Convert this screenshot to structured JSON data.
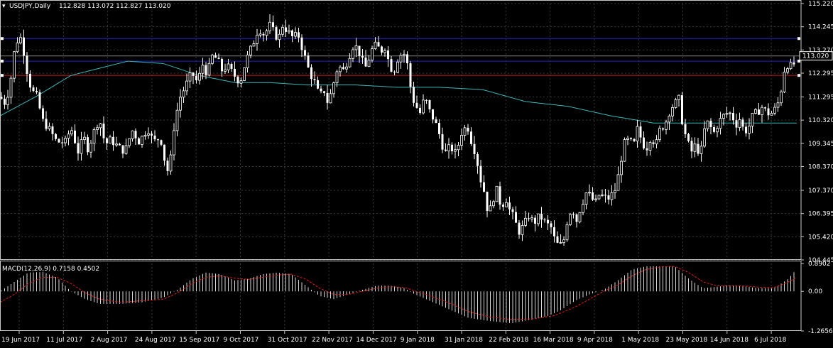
{
  "header": {
    "symbol": "USDJPY,Daily",
    "ohlc": "112.828 113.072 112.827 113.020"
  },
  "macd_header": {
    "label": "MACD(12,26,9) 0.7158 0.4502"
  },
  "colors": {
    "background": "#000000",
    "grid": "#3a3a3a",
    "axis": "#c8c8c8",
    "candle": "#ffffff",
    "ma": "#3fb6b6",
    "hline_blue": "#2222c8",
    "hline_red": "#c81e1e",
    "hline_gray": "#7f7f7f",
    "macd_hist": "#d8d8d8",
    "macd_signal": "#e0201e",
    "current_price_box": "#000000"
  },
  "chart_data": [
    {
      "type": "candlestick",
      "name": "USDJPY,Daily",
      "ylim": [
        104.445,
        115.22
      ],
      "y_ticks": [
        "115.220",
        "114.245",
        "113.270",
        "112.295",
        "111.295",
        "110.320",
        "109.345",
        "108.370",
        "107.370",
        "106.395",
        "105.420",
        "104.445"
      ],
      "current_price_label": "113.020",
      "x_tick_labels": [
        "19 Jun 2017",
        "11 Jul 2017",
        "2 Aug 2017",
        "24 Aug 2017",
        "15 Sep 2017",
        "9 Oct 2017",
        "31 Oct 2017",
        "22 Nov 2017",
        "14 Dec 2017",
        "9 Jan 2018",
        "31 Jan 2018",
        "22 Feb 2018",
        "16 Mar 2018",
        "9 Apr 2018",
        "1 May 2018",
        "23 May 2018",
        "14 Jun 2018",
        "6 Jul 2018"
      ],
      "horizontal_lines": [
        {
          "value": 113.75,
          "color": "blue"
        },
        {
          "value": 113.02,
          "color": "gray"
        },
        {
          "value": 112.8,
          "color": "blue"
        },
        {
          "value": 112.2,
          "color": "red"
        }
      ],
      "close_anchors": [
        [
          0,
          111.3
        ],
        [
          8,
          111.0
        ],
        [
          15,
          112.0
        ],
        [
          22,
          113.6
        ],
        [
          30,
          113.8
        ],
        [
          38,
          112.4
        ],
        [
          44,
          111.6
        ],
        [
          52,
          111.3
        ],
        [
          60,
          110.3
        ],
        [
          70,
          109.9
        ],
        [
          80,
          109.4
        ],
        [
          92,
          109.4
        ],
        [
          100,
          110.0
        ],
        [
          110,
          109.0
        ],
        [
          118,
          109.6
        ],
        [
          124,
          109.1
        ],
        [
          132,
          109.8
        ],
        [
          140,
          110.4
        ],
        [
          148,
          109.3
        ],
        [
          156,
          109.5
        ],
        [
          166,
          109.2
        ],
        [
          176,
          109.0
        ],
        [
          186,
          109.9
        ],
        [
          196,
          109.4
        ],
        [
          208,
          110.0
        ],
        [
          216,
          109.4
        ],
        [
          226,
          109.6
        ],
        [
          232,
          108.6
        ],
        [
          238,
          108.0
        ],
        [
          246,
          110.3
        ],
        [
          254,
          111.3
        ],
        [
          262,
          111.8
        ],
        [
          270,
          112.3
        ],
        [
          278,
          111.9
        ],
        [
          286,
          112.7
        ],
        [
          292,
          112.2
        ],
        [
          298,
          113.0
        ],
        [
          306,
          112.9
        ],
        [
          312,
          112.4
        ],
        [
          320,
          112.6
        ],
        [
          330,
          112.2
        ],
        [
          338,
          111.9
        ],
        [
          346,
          112.8
        ],
        [
          356,
          113.5
        ],
        [
          364,
          114.2
        ],
        [
          372,
          113.9
        ],
        [
          380,
          114.3
        ],
        [
          386,
          114.0
        ],
        [
          392,
          113.7
        ],
        [
          398,
          114.3
        ],
        [
          404,
          114.1
        ],
        [
          412,
          113.8
        ],
        [
          420,
          113.9
        ],
        [
          428,
          113.1
        ],
        [
          436,
          112.3
        ],
        [
          442,
          112.0
        ],
        [
          450,
          111.3
        ],
        [
          456,
          111.6
        ],
        [
          462,
          111.0
        ],
        [
          470,
          111.9
        ],
        [
          476,
          112.6
        ],
        [
          484,
          112.4
        ],
        [
          490,
          112.9
        ],
        [
          498,
          113.5
        ],
        [
          504,
          113.3
        ],
        [
          510,
          112.8
        ],
        [
          516,
          112.5
        ],
        [
          522,
          113.2
        ],
        [
          530,
          113.5
        ],
        [
          536,
          113.2
        ],
        [
          542,
          113.4
        ],
        [
          548,
          112.7
        ],
        [
          554,
          112.3
        ],
        [
          560,
          112.9
        ],
        [
          568,
          113.2
        ],
        [
          574,
          112.6
        ],
        [
          580,
          111.3
        ],
        [
          586,
          110.9
        ],
        [
          592,
          110.6
        ],
        [
          598,
          111.3
        ],
        [
          606,
          110.6
        ],
        [
          612,
          110.3
        ],
        [
          620,
          109.6
        ],
        [
          626,
          108.9
        ],
        [
          634,
          109.2
        ],
        [
          642,
          108.9
        ],
        [
          650,
          109.8
        ],
        [
          658,
          110.1
        ],
        [
          664,
          109.4
        ],
        [
          670,
          108.9
        ],
        [
          676,
          107.9
        ],
        [
          682,
          107.3
        ],
        [
          688,
          106.3
        ],
        [
          694,
          107.0
        ],
        [
          700,
          107.4
        ],
        [
          706,
          106.6
        ],
        [
          712,
          107.1
        ],
        [
          718,
          106.5
        ],
        [
          724,
          106.2
        ],
        [
          730,
          105.6
        ],
        [
          738,
          105.9
        ],
        [
          744,
          106.3
        ],
        [
          752,
          106.0
        ],
        [
          760,
          106.3
        ],
        [
          768,
          106.0
        ],
        [
          776,
          105.8
        ],
        [
          782,
          105.2
        ],
        [
          788,
          105.0
        ],
        [
          794,
          105.3
        ],
        [
          800,
          106.3
        ],
        [
          806,
          106.6
        ],
        [
          812,
          106.1
        ],
        [
          818,
          106.7
        ],
        [
          826,
          107.3
        ],
        [
          832,
          107.1
        ],
        [
          838,
          106.8
        ],
        [
          844,
          107.2
        ],
        [
          850,
          107.1
        ],
        [
          856,
          107.0
        ],
        [
          862,
          107.2
        ],
        [
          868,
          107.5
        ],
        [
          874,
          108.6
        ],
        [
          880,
          109.4
        ],
        [
          886,
          109.5
        ],
        [
          892,
          109.2
        ],
        [
          898,
          110.0
        ],
        [
          904,
          109.4
        ],
        [
          910,
          109.1
        ],
        [
          916,
          109.6
        ],
        [
          924,
          109.3
        ],
        [
          930,
          110.0
        ],
        [
          936,
          110.1
        ],
        [
          944,
          110.8
        ],
        [
          950,
          111.0
        ],
        [
          956,
          111.2
        ],
        [
          962,
          110.0
        ],
        [
          968,
          109.4
        ],
        [
          974,
          109.0
        ],
        [
          980,
          109.3
        ],
        [
          986,
          108.8
        ],
        [
          992,
          109.9
        ],
        [
          998,
          110.3
        ],
        [
          1004,
          109.7
        ],
        [
          1010,
          110.1
        ],
        [
          1016,
          110.4
        ],
        [
          1022,
          110.6
        ],
        [
          1030,
          110.6
        ],
        [
          1036,
          110.1
        ],
        [
          1042,
          110.4
        ],
        [
          1048,
          109.8
        ],
        [
          1054,
          110.0
        ],
        [
          1060,
          110.5
        ],
        [
          1068,
          110.7
        ],
        [
          1074,
          110.9
        ],
        [
          1080,
          110.6
        ],
        [
          1086,
          110.6
        ],
        [
          1092,
          110.8
        ],
        [
          1098,
          111.2
        ],
        [
          1104,
          112.4
        ],
        [
          1110,
          112.7
        ],
        [
          1116,
          112.5
        ],
        [
          1122,
          113.02
        ]
      ],
      "ma_anchors": [
        [
          0,
          110.5
        ],
        [
          50,
          111.3
        ],
        [
          100,
          112.2
        ],
        [
          180,
          112.8
        ],
        [
          230,
          112.7
        ],
        [
          280,
          112.2
        ],
        [
          330,
          111.9
        ],
        [
          380,
          111.9
        ],
        [
          430,
          111.8
        ],
        [
          500,
          111.8
        ],
        [
          560,
          111.7
        ],
        [
          620,
          111.7
        ],
        [
          680,
          111.6
        ],
        [
          740,
          111.1
        ],
        [
          800,
          110.9
        ],
        [
          860,
          110.5
        ],
        [
          920,
          110.2
        ],
        [
          980,
          110.2
        ],
        [
          1040,
          110.2
        ],
        [
          1122,
          110.2
        ]
      ]
    },
    {
      "type": "bar",
      "name": "MACD(12,26,9)",
      "values_text": "0.7158 0.4502",
      "ylim": [
        -1.2656,
        0.8902
      ],
      "y_ticks": [
        "0.8902",
        "0.00",
        "-1.2656"
      ],
      "histogram_anchors": [
        [
          0,
          0.0
        ],
        [
          20,
          0.3
        ],
        [
          40,
          0.6
        ],
        [
          60,
          0.62
        ],
        [
          80,
          0.45
        ],
        [
          100,
          0.0
        ],
        [
          120,
          -0.25
        ],
        [
          140,
          -0.4
        ],
        [
          170,
          -0.4
        ],
        [
          200,
          -0.35
        ],
        [
          230,
          -0.2
        ],
        [
          250,
          0.05
        ],
        [
          270,
          0.4
        ],
        [
          290,
          0.6
        ],
        [
          310,
          0.55
        ],
        [
          330,
          0.35
        ],
        [
          350,
          0.4
        ],
        [
          370,
          0.55
        ],
        [
          390,
          0.6
        ],
        [
          410,
          0.55
        ],
        [
          430,
          0.2
        ],
        [
          450,
          -0.15
        ],
        [
          470,
          -0.25
        ],
        [
          490,
          -0.1
        ],
        [
          510,
          0.05
        ],
        [
          530,
          0.18
        ],
        [
          550,
          0.18
        ],
        [
          570,
          0.1
        ],
        [
          580,
          -0.05
        ],
        [
          600,
          -0.25
        ],
        [
          630,
          -0.55
        ],
        [
          660,
          -0.85
        ],
        [
          690,
          -0.95
        ],
        [
          720,
          -1.02
        ],
        [
          750,
          -0.9
        ],
        [
          770,
          -0.8
        ],
        [
          790,
          -0.6
        ],
        [
          810,
          -0.3
        ],
        [
          830,
          -0.1
        ],
        [
          850,
          0.05
        ],
        [
          870,
          0.35
        ],
        [
          890,
          0.7
        ],
        [
          910,
          0.8
        ],
        [
          930,
          0.8
        ],
        [
          950,
          0.8
        ],
        [
          970,
          0.4
        ],
        [
          990,
          0.1
        ],
        [
          1010,
          0.15
        ],
        [
          1030,
          0.2
        ],
        [
          1050,
          0.15
        ],
        [
          1070,
          0.1
        ],
        [
          1090,
          0.1
        ],
        [
          1110,
          0.4
        ],
        [
          1122,
          0.72
        ]
      ],
      "signal_anchors": [
        [
          0,
          -0.35
        ],
        [
          20,
          -0.1
        ],
        [
          40,
          0.25
        ],
        [
          60,
          0.45
        ],
        [
          80,
          0.45
        ],
        [
          100,
          0.25
        ],
        [
          120,
          -0.05
        ],
        [
          140,
          -0.25
        ],
        [
          170,
          -0.35
        ],
        [
          200,
          -0.3
        ],
        [
          230,
          -0.25
        ],
        [
          250,
          -0.05
        ],
        [
          270,
          0.25
        ],
        [
          290,
          0.45
        ],
        [
          310,
          0.5
        ],
        [
          330,
          0.42
        ],
        [
          350,
          0.38
        ],
        [
          370,
          0.45
        ],
        [
          390,
          0.52
        ],
        [
          410,
          0.55
        ],
        [
          430,
          0.4
        ],
        [
          450,
          0.1
        ],
        [
          470,
          -0.1
        ],
        [
          490,
          -0.1
        ],
        [
          510,
          0.0
        ],
        [
          530,
          0.1
        ],
        [
          550,
          0.15
        ],
        [
          570,
          0.12
        ],
        [
          600,
          -0.1
        ],
        [
          630,
          -0.35
        ],
        [
          660,
          -0.65
        ],
        [
          690,
          -0.82
        ],
        [
          720,
          -0.9
        ],
        [
          750,
          -0.88
        ],
        [
          780,
          -0.78
        ],
        [
          810,
          -0.5
        ],
        [
          830,
          -0.25
        ],
        [
          850,
          0.0
        ],
        [
          870,
          0.2
        ],
        [
          890,
          0.5
        ],
        [
          910,
          0.7
        ],
        [
          930,
          0.78
        ],
        [
          950,
          0.8
        ],
        [
          970,
          0.6
        ],
        [
          990,
          0.3
        ],
        [
          1010,
          0.18
        ],
        [
          1030,
          0.18
        ],
        [
          1050,
          0.17
        ],
        [
          1070,
          0.13
        ],
        [
          1090,
          0.12
        ],
        [
          1110,
          0.3
        ],
        [
          1122,
          0.45
        ]
      ]
    }
  ]
}
